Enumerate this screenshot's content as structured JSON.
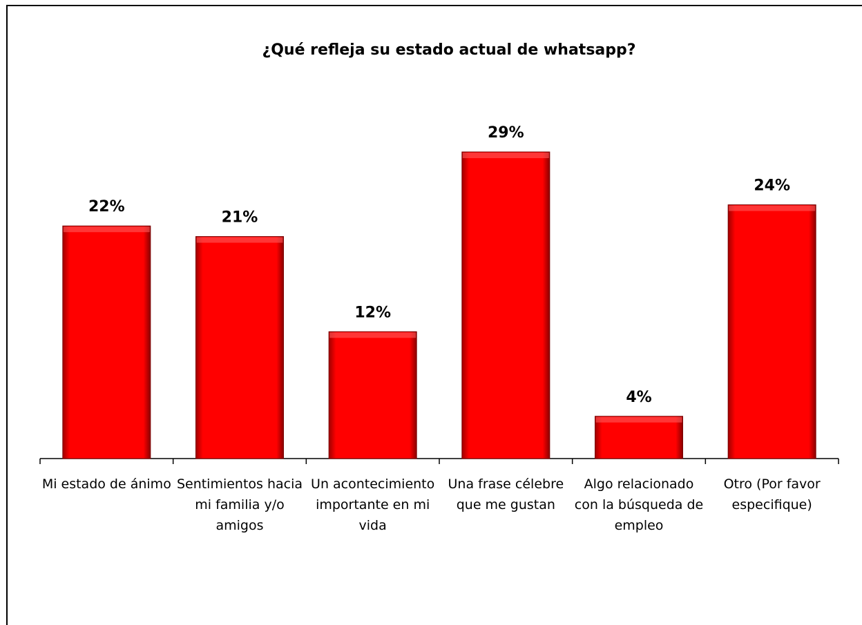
{
  "chart_data": {
    "type": "bar",
    "title": "¿Qué refleja su estado actual de whatsapp?",
    "categories": [
      "Mi estado de ánimo",
      "Sentimientos hacia mi familia y/o amigos",
      "Un acontecimiento importante en mi vida",
      "Una frase célebre que me gustan",
      "Algo relacionado con la búsqueda de empleo",
      "Otro (Por favor especifique)"
    ],
    "values": [
      22,
      21,
      12,
      29,
      4,
      24
    ],
    "value_labels": [
      "22%",
      "21%",
      "12%",
      "29%",
      "4%",
      "24%"
    ],
    "color": "#ff0000"
  }
}
